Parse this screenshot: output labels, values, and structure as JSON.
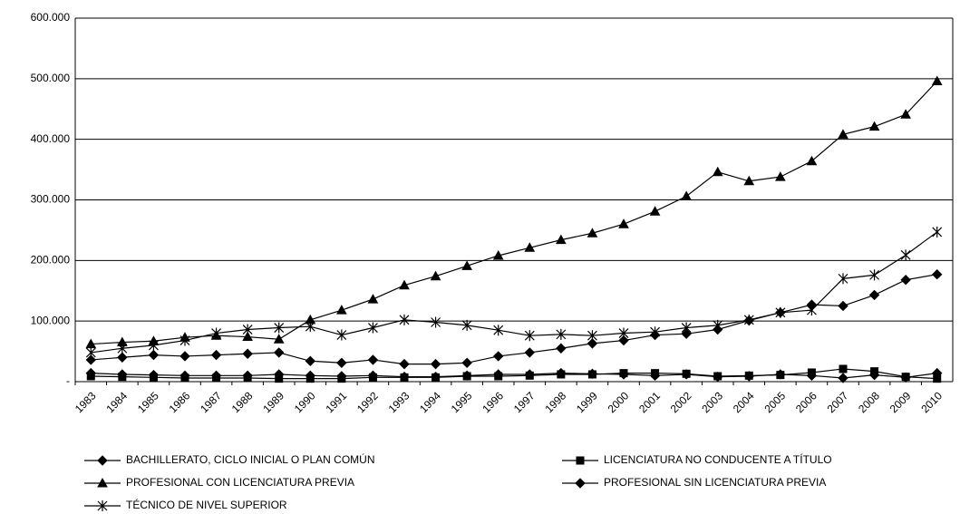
{
  "chart_data": {
    "type": "line",
    "categories": [
      "1983",
      "1984",
      "1985",
      "1986",
      "1987",
      "1988",
      "1989",
      "1990",
      "1991",
      "1992",
      "1993",
      "1994",
      "1995",
      "1996",
      "1997",
      "1998",
      "1999",
      "2000",
      "2001",
      "2002",
      "2003",
      "2004",
      "2005",
      "2006",
      "2007",
      "2008",
      "2009",
      "2010"
    ],
    "series": [
      {
        "name": "BACHILLERATO, CICLO INICIAL O PLAN COMÚN",
        "color": "#000000",
        "marker": "diamond",
        "values": [
          14000,
          12000,
          11000,
          10000,
          10000,
          10000,
          12000,
          10000,
          9000,
          10000,
          8000,
          8000,
          10000,
          12000,
          12000,
          14000,
          13000,
          12000,
          10000,
          12000,
          8000,
          9000,
          12000,
          10000,
          6000,
          11000,
          7000,
          14000
        ]
      },
      {
        "name": "LICENCIATURA NO CONDUCENTE A TÍTULO",
        "color": "#000000",
        "marker": "square",
        "values": [
          9000,
          8000,
          7000,
          6000,
          6000,
          6000,
          5000,
          5000,
          5000,
          7000,
          7000,
          7000,
          9000,
          9000,
          10000,
          12000,
          12000,
          14000,
          14000,
          13000,
          9000,
          10000,
          11000,
          15000,
          21000,
          17000,
          8000,
          5000
        ]
      },
      {
        "name": "PROFESIONAL CON LICENCIATURA PREVIA",
        "color": "#000000",
        "marker": "triangle",
        "values": [
          62000,
          65000,
          67000,
          73000,
          76000,
          74000,
          70000,
          102000,
          118000,
          136000,
          159000,
          174000,
          191000,
          208000,
          221000,
          234000,
          245000,
          260000,
          281000,
          306000,
          346000,
          331000,
          338000,
          364000,
          408000,
          421000,
          441000,
          496000
        ]
      },
      {
        "name": "PROFESIONAL SIN LICENCIATURA PREVIA",
        "color": "#000000",
        "marker": "diamond",
        "values": [
          36000,
          40000,
          44000,
          42000,
          44000,
          46000,
          48000,
          34000,
          31000,
          36000,
          29000,
          29000,
          31000,
          42000,
          48000,
          55000,
          63000,
          68000,
          77000,
          79000,
          86000,
          101000,
          114000,
          127000,
          125000,
          143000,
          168000,
          177000
        ]
      },
      {
        "name": "TÉCNICO DE NIVEL SUPERIOR",
        "color": "#000000",
        "marker": "star",
        "values": [
          48000,
          55000,
          60000,
          68000,
          80000,
          86000,
          89000,
          91000,
          77000,
          89000,
          102000,
          98000,
          93000,
          85000,
          76000,
          78000,
          76000,
          80000,
          82000,
          89000,
          93000,
          102000,
          114000,
          118000,
          170000,
          176000,
          209000,
          247000
        ]
      }
    ],
    "ylim": [
      0,
      600000
    ],
    "yticks": [
      {
        "value": 0,
        "label": "-"
      },
      {
        "value": 100000,
        "label": "100.000"
      },
      {
        "value": 200000,
        "label": "200.000"
      },
      {
        "value": 300000,
        "label": "300.000"
      },
      {
        "value": 400000,
        "label": "400.000"
      },
      {
        "value": 500000,
        "label": "500.000"
      },
      {
        "value": 600000,
        "label": "600.000"
      }
    ],
    "grid": true,
    "legend": "bottom"
  }
}
